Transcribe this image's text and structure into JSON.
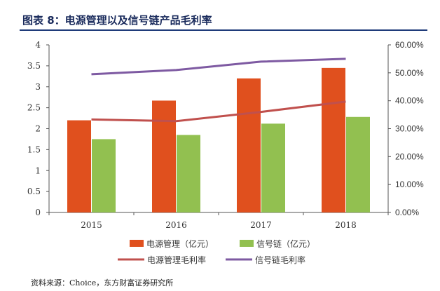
{
  "figure": {
    "title": "图表 8：电源管理以及信号链产品毛利率",
    "source": "资料来源：Choice，东方财富证券研究所"
  },
  "chart_data": {
    "type": "bar",
    "categories": [
      "2015",
      "2016",
      "2017",
      "2018"
    ],
    "series": [
      {
        "name": "电源管理（亿元）",
        "kind": "bar",
        "axis": "left",
        "color": "#e0501e",
        "values": [
          2.2,
          2.67,
          3.2,
          3.45
        ]
      },
      {
        "name": "信号链（亿元）",
        "kind": "bar",
        "axis": "left",
        "color": "#92c050",
        "values": [
          1.75,
          1.85,
          2.12,
          2.28
        ]
      },
      {
        "name": "电源管理毛利率",
        "kind": "line",
        "axis": "right",
        "color": "#c0504d",
        "values": [
          0.333,
          0.327,
          0.36,
          0.397
        ]
      },
      {
        "name": "信号链毛利率",
        "kind": "line",
        "axis": "right",
        "color": "#7e5aa2",
        "values": [
          0.495,
          0.51,
          0.54,
          0.55
        ]
      }
    ],
    "left_axis": {
      "ticks": [
        "0",
        "0.5",
        "1",
        "1.5",
        "2",
        "2.5",
        "3",
        "3.5",
        "4"
      ],
      "ylim": [
        0,
        4
      ]
    },
    "right_axis": {
      "ticks": [
        "0.00%",
        "10.00%",
        "20.00%",
        "30.00%",
        "40.00%",
        "50.00%",
        "60.00%"
      ],
      "ylim": [
        0,
        0.6
      ]
    },
    "legend_position": "bottom",
    "grid": false
  }
}
